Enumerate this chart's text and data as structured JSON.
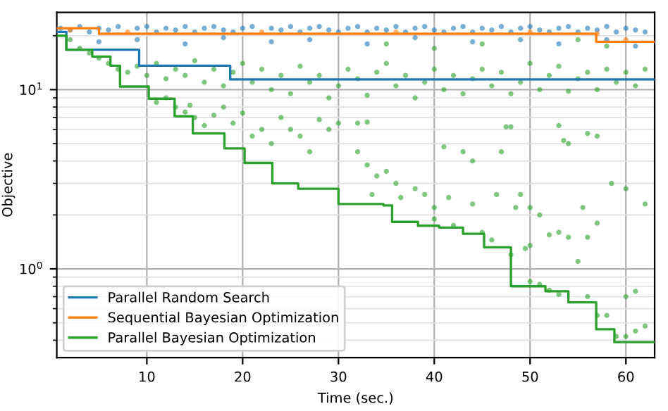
{
  "chart_data": {
    "type": "scatter",
    "xlabel": "Time (sec.)",
    "ylabel": "Objective",
    "log": "y",
    "grid": true,
    "legend": "bottom left",
    "xlim": [
      0.6,
      63
    ],
    "ylim": [
      0.32,
      27
    ],
    "xticks": [
      10,
      20,
      30,
      40,
      50,
      60
    ],
    "yticks": [
      {
        "value": 1,
        "label": "10$^{0}$"
      },
      {
        "value": 10,
        "label": "10$^{1}$"
      }
    ],
    "series": [
      {
        "color": "#1f77b4",
        "x": [
          1,
          2,
          3,
          4,
          5,
          6,
          7,
          8,
          9,
          10,
          11,
          12,
          13,
          14,
          15,
          16,
          17,
          18,
          19,
          20,
          21,
          22,
          23,
          24,
          25,
          26,
          27,
          28,
          29,
          30,
          31,
          32,
          33,
          34,
          35,
          36,
          37,
          38,
          39,
          40,
          41,
          42,
          43,
          44,
          45,
          46,
          47,
          48,
          49,
          50,
          51,
          52,
          53,
          54,
          55,
          56,
          57,
          58,
          59,
          60,
          61,
          62,
          5,
          9,
          14,
          18,
          23,
          27,
          33,
          38,
          44,
          49,
          53,
          58,
          61
        ],
        "values": [
          22,
          21.5,
          22.5,
          21,
          22,
          21.5,
          22.5,
          null,
          22,
          22.5,
          21,
          22,
          21.5,
          22.5,
          21,
          22,
          22.5,
          21.5,
          21,
          22,
          22.5,
          null,
          22,
          21.5,
          22.5,
          21,
          22,
          22.5,
          21.5,
          21,
          22,
          22.5,
          21,
          22,
          21.5,
          22.5,
          21,
          22,
          22.5,
          21.5,
          21,
          22,
          22.5,
          21,
          22,
          21.5,
          22.5,
          21,
          22,
          22.5,
          21.5,
          21,
          22,
          22.5,
          21,
          22,
          21.5,
          22.5,
          21,
          22,
          21.5,
          21,
          18.5,
          19,
          18,
          19.5,
          18.5,
          19,
          18,
          19.5,
          18.5,
          19,
          18,
          19,
          17.5
        ]
      },
      {
        "color": "#ff7f0e",
        "x": [
          2,
          8,
          15,
          22,
          29,
          36,
          43,
          50,
          57,
          60
        ],
        "values": [
          21.5,
          21,
          null,
          21,
          null,
          21,
          null,
          21,
          20.5,
          19
        ]
      },
      {
        "color": "#2ca02c",
        "x": [
          2,
          3,
          4,
          5,
          6,
          7,
          8,
          9,
          10,
          11,
          12,
          13,
          14,
          15,
          16,
          17,
          18,
          19,
          20,
          21,
          22,
          23,
          24,
          25,
          26,
          27,
          28,
          29,
          30,
          31,
          32,
          33,
          34,
          35,
          36,
          37,
          38,
          39,
          40,
          41,
          42,
          43,
          44,
          45,
          46,
          47,
          48,
          49,
          50,
          51,
          52,
          53,
          54,
          55,
          56,
          57,
          58,
          59,
          60,
          61,
          62,
          47.5,
          48,
          53,
          32,
          33,
          35,
          40,
          45,
          55,
          58,
          11,
          12,
          13,
          14,
          14.5,
          15,
          16,
          17,
          18,
          19,
          20,
          21,
          22,
          23,
          24,
          25,
          26,
          27,
          28,
          29,
          30,
          32,
          33,
          34,
          35,
          36,
          38,
          39,
          41,
          43,
          44,
          47,
          33.5,
          36.5,
          40,
          41.5,
          44,
          46.5,
          48.5,
          49,
          50,
          51,
          52,
          53,
          54,
          55.5,
          56,
          57,
          49.5,
          50,
          48,
          50,
          51,
          52,
          53,
          55,
          56,
          57,
          58,
          59,
          60,
          61,
          62,
          60,
          61,
          62,
          58.5,
          56,
          57,
          54,
          53.5,
          60,
          40,
          42,
          45,
          46
        ],
        "values": [
          19,
          17,
          16,
          15,
          14,
          13,
          12.5,
          13.5,
          12,
          14,
          11.5,
          13,
          12,
          14.5,
          11,
          13,
          10.5,
          12.5,
          14,
          11,
          13,
          10,
          12,
          9.5,
          13.5,
          11,
          12,
          9,
          10.5,
          13,
          11.5,
          9.3,
          12.5,
          14,
          10.5,
          12,
          9,
          11,
          13,
          10,
          12,
          9.5,
          11.5,
          13,
          10.5,
          12.5,
          9.5,
          11,
          14,
          10,
          12,
          13.5,
          9.8,
          11.5,
          12.5,
          10,
          13,
          11,
          12.5,
          10.5,
          13,
          6.2,
          6.2,
          6.3,
          6.5,
          6.6,
          18,
          17,
          18,
          19,
          17.5,
          8.5,
          9,
          8,
          7.5,
          8.2,
          7,
          6.3,
          7.2,
          8,
          6.5,
          7.4,
          5.5,
          6,
          5,
          7,
          6,
          5.5,
          4.5,
          6.8,
          6,
          6.5,
          4.5,
          3.8,
          3.3,
          3.5,
          3.0,
          2.8,
          2.6,
          4.8,
          4.5,
          4.0,
          4.5,
          2.6,
          2.5,
          2.2,
          2.5,
          2.3,
          2.6,
          2.2,
          2.6,
          2.2,
          2.0,
          1.55,
          1.6,
          1.5,
          2.2,
          1.5,
          1.8,
          1.3,
          1.35,
          1.2,
          0.85,
          0.82,
          0.76,
          0.72,
          1.1,
          0.7,
          0.55,
          0.55,
          0.42,
          0.42,
          0.45,
          0.48,
          0.7,
          0.75,
          2.3,
          3.0,
          5.7,
          5.5,
          5,
          5.2,
          2.8,
          1.9,
          1.75,
          1.6,
          1.45
        ]
      },
      {
        "type": "step",
        "name": "Parallel Random Search",
        "color": "#1f77b4",
        "x": [
          0.6,
          1.6,
          9.2,
          18.7,
          63
        ],
        "values": [
          21,
          16.7,
          13.6,
          11.4,
          11.4
        ]
      },
      {
        "type": "step",
        "name": "Sequential Bayesian Optimization",
        "color": "#ff7f0e",
        "x": [
          0.6,
          5,
          56.9,
          63
        ],
        "values": [
          22,
          20.5,
          18.5,
          18.5
        ]
      },
      {
        "type": "step",
        "name": "Parallel Bayesian Optimization",
        "color": "#2ca02c",
        "x": [
          0.6,
          1.6,
          4.3,
          6.2,
          7.2,
          10.2,
          12.9,
          14.8,
          18.1,
          20.2,
          23.1,
          25.8,
          30.0,
          34.7,
          35.6,
          38.3,
          40.5,
          43,
          45.2,
          48,
          51.6,
          54,
          56.9,
          58.8,
          63
        ],
        "values": [
          20,
          16.7,
          15.3,
          13.6,
          10.4,
          8.9,
          7.1,
          5.7,
          4.7,
          3.9,
          3.0,
          2.8,
          2.3,
          2.26,
          1.83,
          1.74,
          1.7,
          1.57,
          1.32,
          0.8,
          0.75,
          0.65,
          0.46,
          0.39,
          0.39
        ]
      }
    ]
  }
}
